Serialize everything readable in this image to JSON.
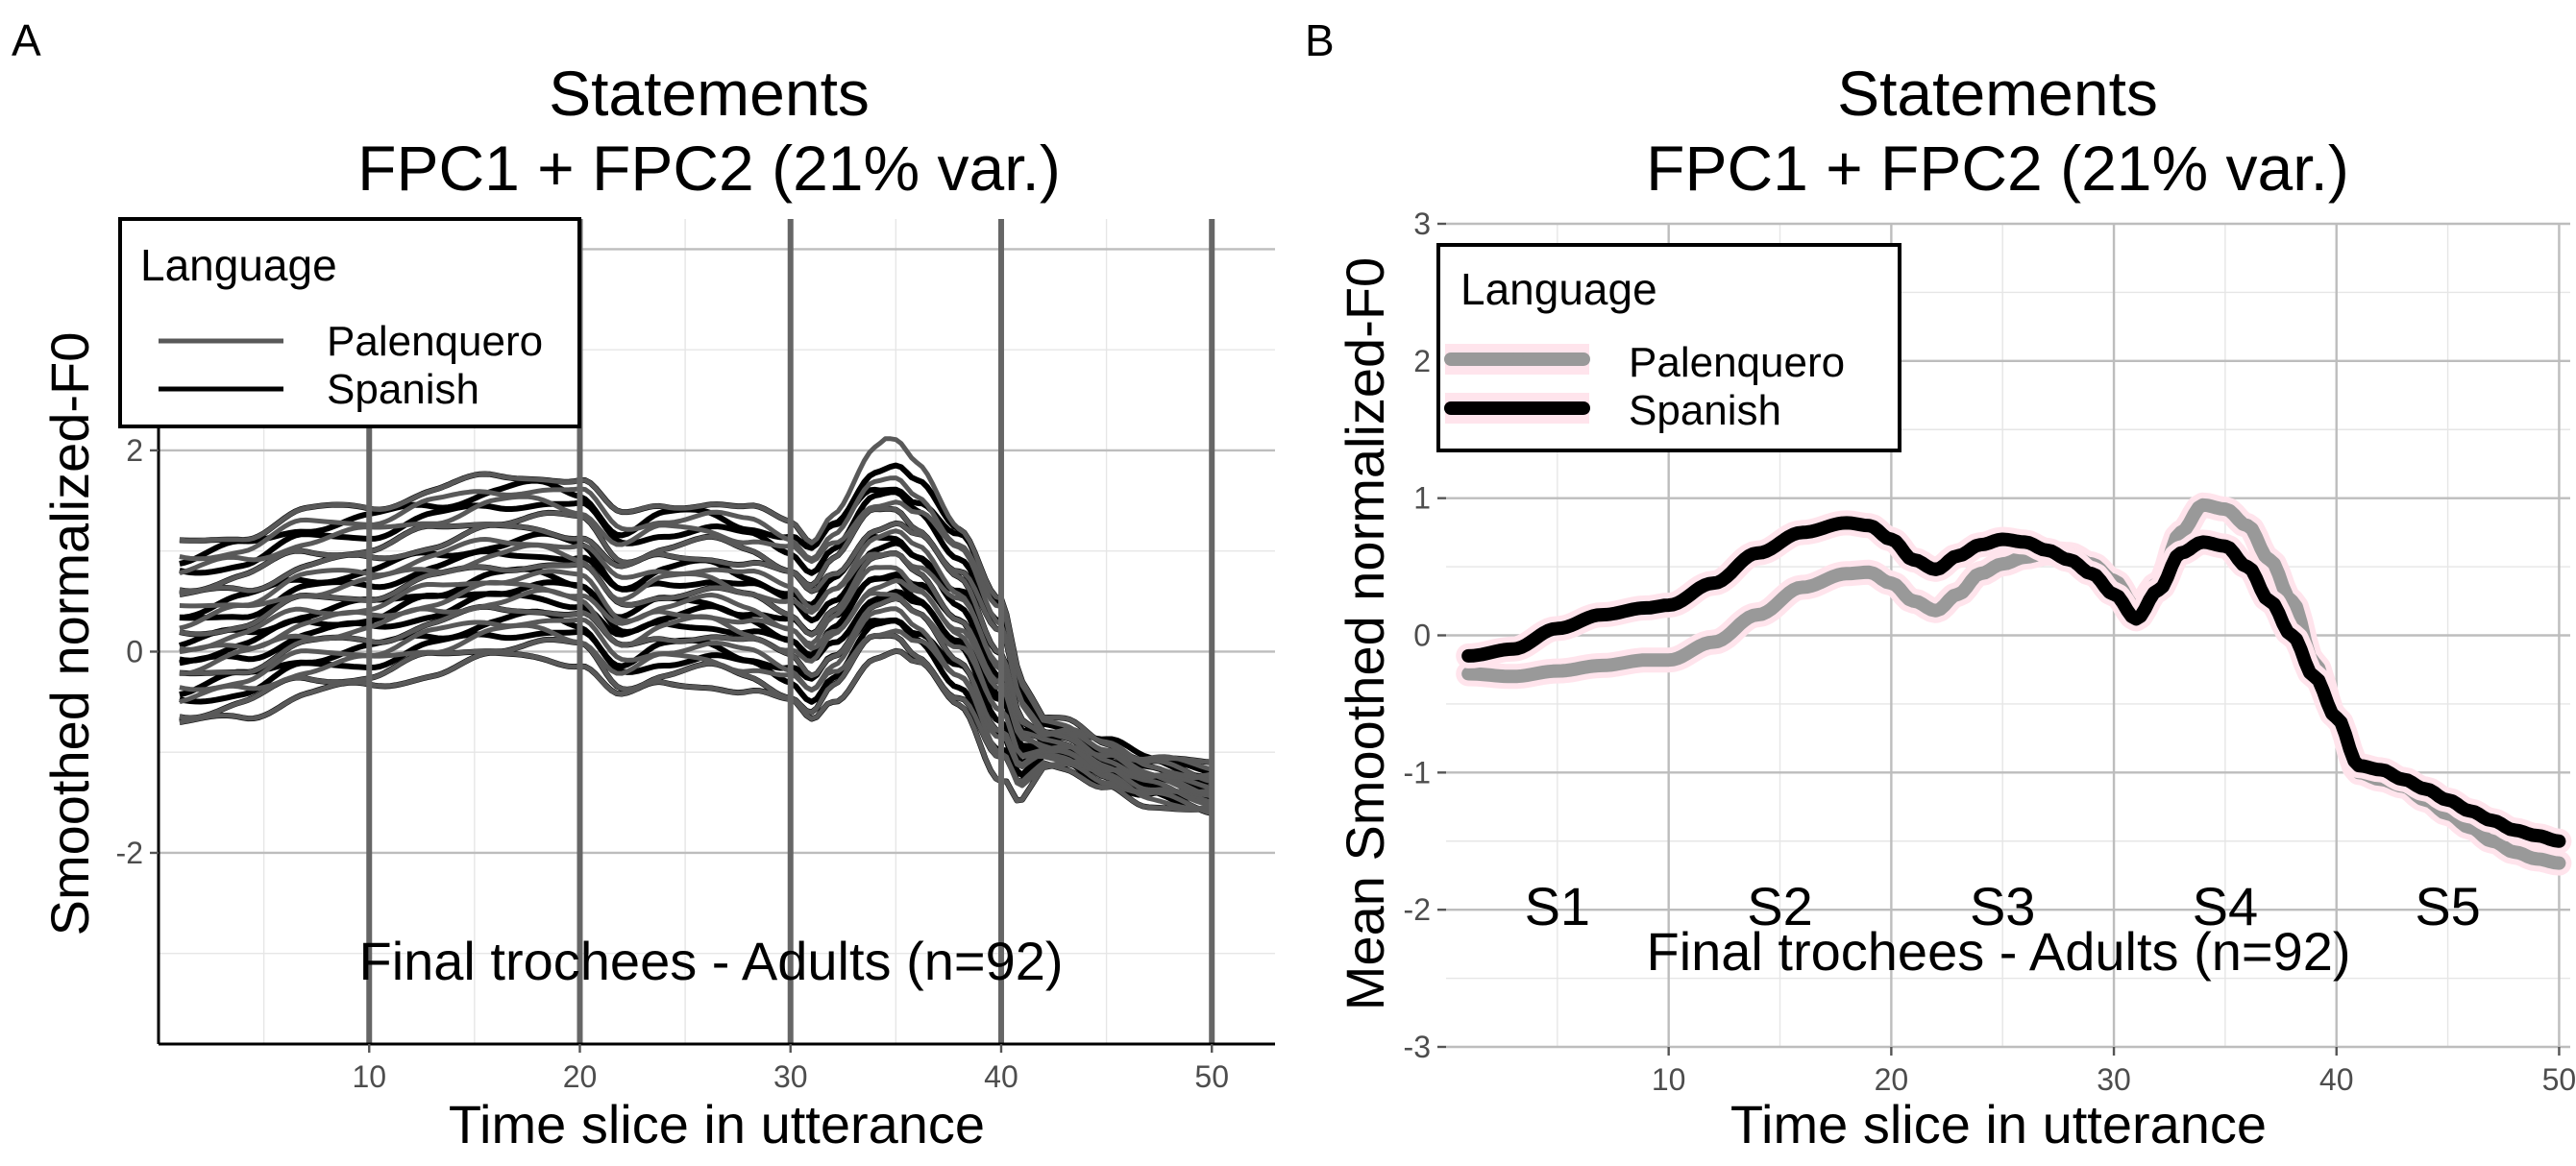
{
  "chart_data": [
    {
      "panel": "A",
      "type": "line",
      "title_line1": "Statements",
      "title_line2": "FPC1 + FPC2 (21% var.)",
      "xlabel": "Time slice in utterance",
      "ylabel": "Smoothed normalized-F0",
      "xlim": [
        0,
        53
      ],
      "ylim": [
        -3.9,
        4.3
      ],
      "xticks": [
        10,
        20,
        30,
        40,
        50
      ],
      "yticks": [
        -2,
        0,
        2
      ],
      "vlines": [
        10,
        20,
        30,
        40,
        50
      ],
      "annotation": "Final trochees - Adults (n=92)",
      "legend": {
        "title": "Language",
        "placement": "top-left",
        "entries": [
          {
            "name": "Palenquero",
            "color": "#595959"
          },
          {
            "name": "Spanish",
            "color": "#000000"
          }
        ]
      },
      "x": [
        1,
        4,
        7,
        10,
        13,
        16,
        18,
        20,
        22,
        24,
        26,
        28,
        30,
        31,
        32,
        34,
        35,
        36,
        38,
        40,
        41,
        43,
        45,
        47,
        50
      ],
      "mean_curve": [
        0.0,
        0.12,
        0.33,
        0.4,
        0.55,
        0.68,
        0.72,
        0.65,
        0.28,
        0.42,
        0.45,
        0.35,
        0.22,
        0.06,
        0.28,
        0.72,
        0.75,
        0.6,
        0.2,
        -0.48,
        -0.96,
        -0.98,
        -1.15,
        -1.3,
        -1.42
      ],
      "curve_offsets": [
        -0.75,
        -0.62,
        -0.5,
        -0.38,
        -0.27,
        -0.16,
        -0.05,
        0.06,
        0.17,
        0.28,
        0.4,
        0.52,
        0.64,
        0.78,
        0.92,
        1.05
      ],
      "series": [
        {
          "name": "Palenquero",
          "color": "#595959",
          "peak": 2.1
        },
        {
          "name": "Spanish",
          "color": "#000000",
          "peak": 1.85
        }
      ]
    },
    {
      "panel": "B",
      "type": "line",
      "title_line1": "Statements",
      "title_line2": "FPC1 + FPC2 (21% var.)",
      "xlabel": "Time slice in utterance",
      "ylabel": "Mean Smoothed normalized-F0",
      "xlim": [
        0,
        50.5
      ],
      "ylim": [
        -3,
        3
      ],
      "xticks": [
        10,
        20,
        30,
        40,
        50
      ],
      "yticks": [
        -3,
        -2,
        -1,
        0,
        1,
        2,
        3
      ],
      "syllables": [
        {
          "label": "S1",
          "x": 5
        },
        {
          "label": "S2",
          "x": 15
        },
        {
          "label": "S3",
          "x": 25
        },
        {
          "label": "S4",
          "x": 35
        },
        {
          "label": "S5",
          "x": 45
        }
      ],
      "annotation": "Final trochees - Adults (n=92)",
      "legend": {
        "title": "Language",
        "placement": "top-left",
        "entries": [
          {
            "name": "Palenquero",
            "color": "#999999"
          },
          {
            "name": "Spanish",
            "color": "#000000"
          }
        ]
      },
      "series": [
        {
          "name": "Palenquero",
          "color": "#999999",
          "x": [
            1,
            3,
            5,
            7,
            9,
            10,
            12,
            14,
            16,
            18,
            19,
            20,
            21,
            22,
            23,
            24,
            25,
            26,
            27,
            28,
            29,
            30,
            31,
            32,
            33,
            34,
            35,
            36,
            37,
            38,
            39,
            40,
            41,
            42,
            43,
            44,
            45,
            46,
            47,
            48,
            49,
            50
          ],
          "y": [
            -0.28,
            -0.3,
            -0.26,
            -0.22,
            -0.18,
            -0.18,
            -0.05,
            0.15,
            0.35,
            0.45,
            0.46,
            0.38,
            0.25,
            0.18,
            0.3,
            0.45,
            0.52,
            0.57,
            0.6,
            0.59,
            0.52,
            0.4,
            0.2,
            0.38,
            0.75,
            0.95,
            0.92,
            0.8,
            0.55,
            0.25,
            -0.2,
            -0.6,
            -1.0,
            -1.05,
            -1.1,
            -1.2,
            -1.3,
            -1.4,
            -1.5,
            -1.58,
            -1.63,
            -1.66
          ]
        },
        {
          "name": "Spanish",
          "color": "#000000",
          "x": [
            1,
            3,
            5,
            7,
            9,
            10,
            12,
            14,
            16,
            18,
            19,
            20,
            21,
            22,
            23,
            24,
            25,
            26,
            27,
            28,
            29,
            30,
            31,
            32,
            33,
            34,
            35,
            36,
            37,
            38,
            39,
            40,
            41,
            42,
            43,
            44,
            45,
            46,
            47,
            48,
            49,
            50
          ],
          "y": [
            -0.15,
            -0.1,
            0.05,
            0.15,
            0.2,
            0.22,
            0.38,
            0.6,
            0.75,
            0.82,
            0.8,
            0.7,
            0.55,
            0.48,
            0.58,
            0.66,
            0.7,
            0.68,
            0.62,
            0.55,
            0.45,
            0.3,
            0.12,
            0.33,
            0.6,
            0.68,
            0.65,
            0.5,
            0.25,
            0.0,
            -0.3,
            -0.6,
            -0.95,
            -0.98,
            -1.05,
            -1.12,
            -1.2,
            -1.28,
            -1.35,
            -1.42,
            -1.46,
            -1.5
          ]
        }
      ]
    }
  ]
}
